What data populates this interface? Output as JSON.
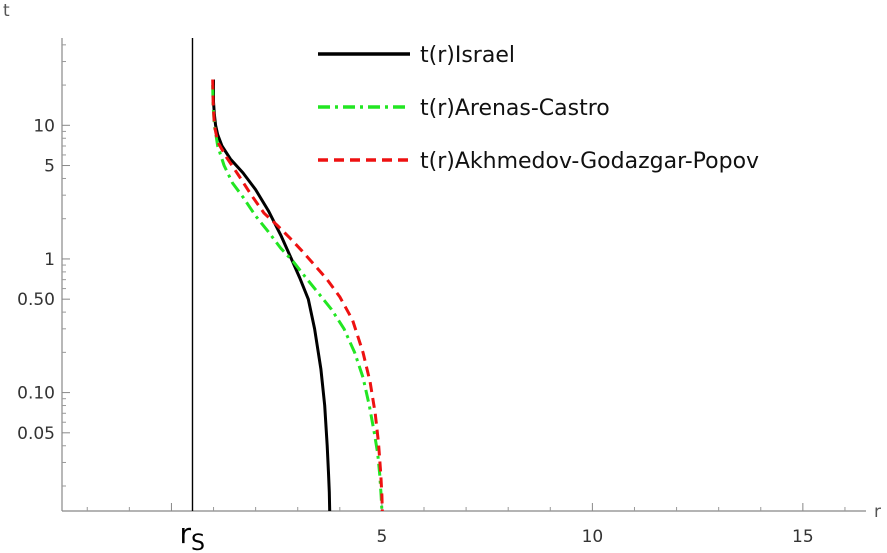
{
  "chart_data": {
    "type": "line",
    "xlabel": "r",
    "ylabel": "t",
    "y_scale": "log",
    "xlim": [
      -2.6,
      16.5
    ],
    "ylim": [
      0.013,
      45
    ],
    "grid": false,
    "legend_position": "top-right",
    "x_ticks": [
      {
        "value": 5,
        "label": "5"
      },
      {
        "value": 10,
        "label": "10"
      },
      {
        "value": 15,
        "label": "15"
      }
    ],
    "y_ticks": [
      {
        "value": 10,
        "label": "10"
      },
      {
        "value": 5,
        "label": "5"
      },
      {
        "value": 1,
        "label": "1"
      },
      {
        "value": 0.5,
        "label": "0.50"
      },
      {
        "value": 0.1,
        "label": "0.10"
      },
      {
        "value": 0.05,
        "label": "0.05"
      }
    ],
    "marker": {
      "label": "r",
      "subscript": "S",
      "x": 0.5
    },
    "series": [
      {
        "name": "t(r)Israel",
        "color": "#000000",
        "style": "solid",
        "x": [
          1.0,
          1.0,
          1.02,
          1.05,
          1.1,
          1.2,
          1.4,
          1.7,
          2.0,
          2.3,
          2.6,
          2.85,
          3.05,
          3.25,
          3.4,
          3.55,
          3.64,
          3.7,
          3.73,
          3.75,
          3.76
        ],
        "y": [
          22,
          15,
          12,
          10,
          8.5,
          7.0,
          5.6,
          4.4,
          3.3,
          2.3,
          1.5,
          1.0,
          0.72,
          0.5,
          0.3,
          0.15,
          0.08,
          0.04,
          0.025,
          0.018,
          0.013
        ]
      },
      {
        "name": "t(r)Arenas-Castro",
        "color": "#22e622",
        "style": "dashdot",
        "x": [
          0.98,
          0.99,
          1.02,
          1.1,
          1.25,
          1.45,
          1.7,
          2.0,
          2.3,
          2.6,
          2.9,
          3.2,
          3.5,
          3.8,
          4.1,
          4.35,
          4.55,
          4.7,
          4.82,
          4.9,
          4.95,
          4.98,
          5.0
        ],
        "y": [
          20,
          14,
          10,
          7.0,
          5.0,
          3.7,
          2.9,
          2.1,
          1.6,
          1.2,
          0.95,
          0.72,
          0.55,
          0.42,
          0.3,
          0.2,
          0.13,
          0.08,
          0.05,
          0.035,
          0.024,
          0.017,
          0.013
        ]
      },
      {
        "name": "t(r)Akhmedov-Godazgar-Popov",
        "color": "#ee1111",
        "style": "dashed",
        "x": [
          0.98,
          0.99,
          1.02,
          1.1,
          1.3,
          1.6,
          1.9,
          2.2,
          2.5,
          2.8,
          3.1,
          3.4,
          3.7,
          4.0,
          4.3,
          4.55,
          4.72,
          4.84,
          4.92,
          4.97,
          5.0,
          5.01
        ],
        "y": [
          22,
          15,
          10,
          7.5,
          5.8,
          4.2,
          3.0,
          2.2,
          1.8,
          1.45,
          1.15,
          0.9,
          0.7,
          0.52,
          0.35,
          0.2,
          0.12,
          0.07,
          0.042,
          0.025,
          0.017,
          0.013
        ]
      }
    ]
  }
}
